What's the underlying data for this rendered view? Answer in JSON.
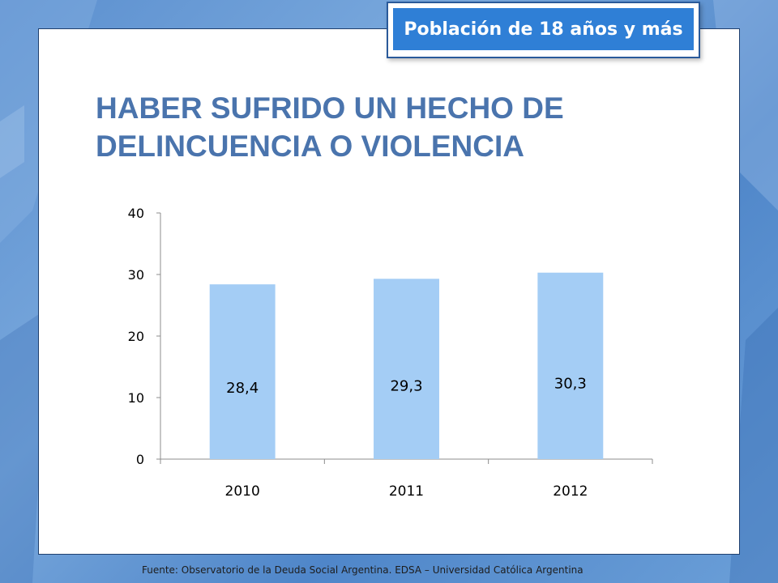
{
  "badge": {
    "text": "Población de 18 años y más"
  },
  "title": {
    "line1": "HABER SUFRIDO UN HECHO DE",
    "line2": "DELINCUENCIA O VIOLENCIA"
  },
  "footer": {
    "text": "Fuente:  Observatorio de  la Deuda Social Argentina. EDSA  – Universidad Católica Argentina"
  },
  "colors": {
    "bar": "#a4cdf5",
    "title": "#4a74ad",
    "badge": "#2f7fd6",
    "background": "#5b8fcf"
  },
  "chart_data": {
    "type": "bar",
    "title": "HABER SUFRIDO UN HECHO DE DELINCUENCIA O VIOLENCIA",
    "categories": [
      "2010",
      "2011",
      "2012"
    ],
    "values": [
      28.4,
      29.3,
      30.3
    ],
    "data_labels": [
      "28,4",
      "29,3",
      "30,3"
    ],
    "ylim": [
      0,
      40
    ],
    "yticks": [
      0,
      10,
      20,
      30,
      40
    ],
    "xlabel": "",
    "ylabel": "",
    "grid": false,
    "legend": "none"
  }
}
